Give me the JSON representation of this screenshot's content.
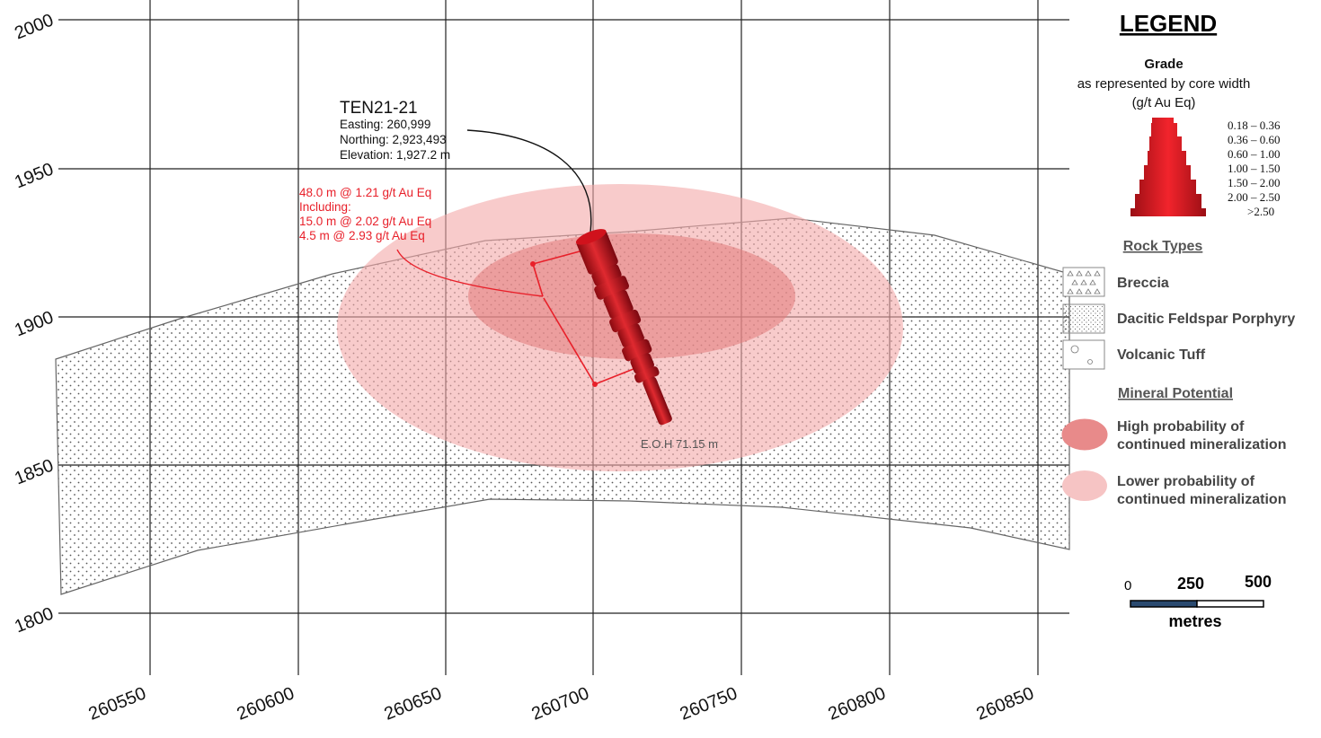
{
  "axes": {
    "x_ticks": [
      "260550",
      "260600",
      "260650",
      "260700",
      "260750",
      "260800",
      "260850"
    ],
    "y_ticks": [
      "2000",
      "1950",
      "1900",
      "1850",
      "1800"
    ]
  },
  "drill_hole": {
    "name": "TEN21-21",
    "easting": "Easting: 260,999",
    "northing": "Northing: 2,923,493",
    "elevation": "Elevation: 1,927.2 m",
    "end_of_hole": "E.O.H 71.15 m",
    "color": "#d0121c"
  },
  "intercepts": [
    "48.0 m @ 1.21 g/t Au Eq",
    "Including:",
    "15.0 m @ 2.02 g/t Au Eq",
    "4.5 m @ 2.93 g/t Au Eq"
  ],
  "legend": {
    "title": "LEGEND",
    "grade_title": "Grade",
    "grade_sub1": "as represented by core width",
    "grade_sub2": "(g/t Au Eq)",
    "grade_ranges": [
      "0.18 – 0.36",
      "0.36 – 0.60",
      "0.60 – 1.00",
      "1.00 – 1.50",
      "1.50 – 2.00",
      "2.00 – 2.50",
      ">2.50"
    ],
    "rock_types_title": "Rock Types",
    "rock_types": [
      "Breccia",
      "Dacitic Feldspar Porphyry",
      "Volcanic Tuff"
    ],
    "mineral_title": "Mineral Potential",
    "mineral": [
      {
        "line1": "High probability of",
        "line2": "continued mineralization",
        "color": "#e88a8a"
      },
      {
        "line1": "Lower probability of",
        "line2": "continued mineralization",
        "color": "#f6c4c4"
      }
    ],
    "scale": {
      "zero": "0",
      "mid": "250",
      "max": "500",
      "unit": "metres"
    }
  }
}
